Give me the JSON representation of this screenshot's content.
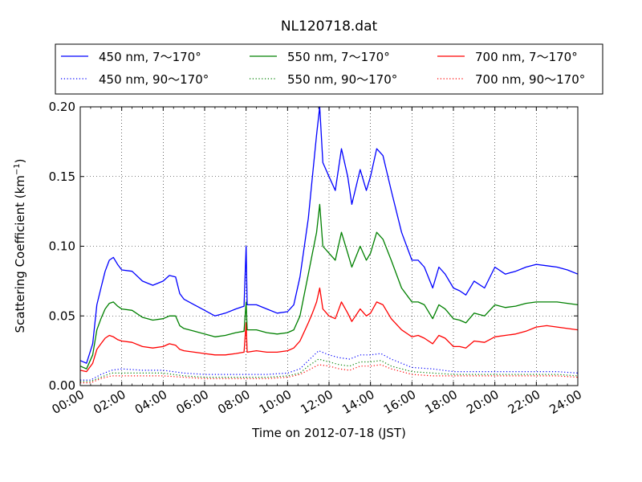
{
  "chart_data": {
    "type": "line",
    "title": "NL120718.dat",
    "xlabel": "Time on 2012-07-18 (JST)",
    "ylabel": "Scattering Coefficient (km",
    "ylabel_sup": "−1",
    "ylabel_close": ")",
    "xlim": [
      0,
      24
    ],
    "ylim": [
      0.0,
      0.2
    ],
    "x_ticks": [
      0,
      2,
      4,
      6,
      8,
      10,
      12,
      14,
      16,
      18,
      20,
      22,
      24
    ],
    "x_tick_labels": [
      "00:00",
      "02:00",
      "04:00",
      "06:00",
      "08:00",
      "10:00",
      "12:00",
      "14:00",
      "16:00",
      "18:00",
      "20:00",
      "22:00",
      "24:00"
    ],
    "y_ticks": [
      0.0,
      0.05,
      0.1,
      0.15,
      0.2
    ],
    "y_tick_labels": [
      "0.00",
      "0.05",
      "0.10",
      "0.15",
      "0.20"
    ],
    "grid": true,
    "legend_position": "top, above plot",
    "series": [
      {
        "name": "450 nm, 7～170°",
        "color": "#0000ff",
        "style": "solid",
        "points": [
          [
            0,
            0.018
          ],
          [
            0.3,
            0.016
          ],
          [
            0.6,
            0.03
          ],
          [
            0.8,
            0.058
          ],
          [
            1.0,
            0.07
          ],
          [
            1.2,
            0.082
          ],
          [
            1.4,
            0.09
          ],
          [
            1.6,
            0.092
          ],
          [
            1.8,
            0.087
          ],
          [
            2,
            0.083
          ],
          [
            2.5,
            0.082
          ],
          [
            3,
            0.075
          ],
          [
            3.5,
            0.072
          ],
          [
            4,
            0.075
          ],
          [
            4.3,
            0.079
          ],
          [
            4.6,
            0.078
          ],
          [
            4.8,
            0.066
          ],
          [
            5,
            0.062
          ],
          [
            5.5,
            0.058
          ],
          [
            6,
            0.054
          ],
          [
            6.5,
            0.05
          ],
          [
            7,
            0.052
          ],
          [
            7.5,
            0.055
          ],
          [
            7.9,
            0.057
          ],
          [
            8.0,
            0.1
          ],
          [
            8.05,
            0.058
          ],
          [
            8.5,
            0.058
          ],
          [
            9,
            0.055
          ],
          [
            9.5,
            0.052
          ],
          [
            10,
            0.053
          ],
          [
            10.3,
            0.058
          ],
          [
            10.6,
            0.078
          ],
          [
            11,
            0.12
          ],
          [
            11.2,
            0.15
          ],
          [
            11.4,
            0.18
          ],
          [
            11.55,
            0.2
          ],
          [
            11.7,
            0.16
          ],
          [
            12,
            0.15
          ],
          [
            12.3,
            0.14
          ],
          [
            12.6,
            0.17
          ],
          [
            12.9,
            0.15
          ],
          [
            13.1,
            0.13
          ],
          [
            13.5,
            0.155
          ],
          [
            13.8,
            0.14
          ],
          [
            14,
            0.15
          ],
          [
            14.3,
            0.17
          ],
          [
            14.6,
            0.165
          ],
          [
            15,
            0.14
          ],
          [
            15.5,
            0.11
          ],
          [
            16,
            0.09
          ],
          [
            16.3,
            0.09
          ],
          [
            16.6,
            0.085
          ],
          [
            17,
            0.07
          ],
          [
            17.3,
            0.085
          ],
          [
            17.6,
            0.08
          ],
          [
            18,
            0.07
          ],
          [
            18.3,
            0.068
          ],
          [
            18.6,
            0.065
          ],
          [
            19,
            0.075
          ],
          [
            19.5,
            0.07
          ],
          [
            20,
            0.085
          ],
          [
            20.5,
            0.08
          ],
          [
            21,
            0.082
          ],
          [
            21.5,
            0.085
          ],
          [
            22,
            0.087
          ],
          [
            22.5,
            0.086
          ],
          [
            23,
            0.085
          ],
          [
            23.5,
            0.083
          ],
          [
            24,
            0.08
          ]
        ]
      },
      {
        "name": "550 nm, 7～170°",
        "color": "#008000",
        "style": "solid",
        "points": [
          [
            0,
            0.014
          ],
          [
            0.3,
            0.012
          ],
          [
            0.6,
            0.022
          ],
          [
            0.8,
            0.04
          ],
          [
            1.0,
            0.048
          ],
          [
            1.2,
            0.055
          ],
          [
            1.4,
            0.059
          ],
          [
            1.6,
            0.06
          ],
          [
            1.8,
            0.057
          ],
          [
            2,
            0.055
          ],
          [
            2.5,
            0.054
          ],
          [
            3,
            0.049
          ],
          [
            3.5,
            0.047
          ],
          [
            4,
            0.048
          ],
          [
            4.3,
            0.05
          ],
          [
            4.6,
            0.05
          ],
          [
            4.8,
            0.043
          ],
          [
            5,
            0.041
          ],
          [
            5.5,
            0.039
          ],
          [
            6,
            0.037
          ],
          [
            6.5,
            0.035
          ],
          [
            7,
            0.036
          ],
          [
            7.5,
            0.038
          ],
          [
            7.9,
            0.039
          ],
          [
            8.0,
            0.06
          ],
          [
            8.05,
            0.04
          ],
          [
            8.5,
            0.04
          ],
          [
            9,
            0.038
          ],
          [
            9.5,
            0.037
          ],
          [
            10,
            0.038
          ],
          [
            10.3,
            0.04
          ],
          [
            10.6,
            0.05
          ],
          [
            11,
            0.08
          ],
          [
            11.2,
            0.095
          ],
          [
            11.4,
            0.11
          ],
          [
            11.55,
            0.13
          ],
          [
            11.7,
            0.1
          ],
          [
            12,
            0.095
          ],
          [
            12.3,
            0.09
          ],
          [
            12.6,
            0.11
          ],
          [
            12.9,
            0.095
          ],
          [
            13.1,
            0.085
          ],
          [
            13.5,
            0.1
          ],
          [
            13.8,
            0.09
          ],
          [
            14,
            0.095
          ],
          [
            14.3,
            0.11
          ],
          [
            14.6,
            0.105
          ],
          [
            15,
            0.09
          ],
          [
            15.5,
            0.07
          ],
          [
            16,
            0.06
          ],
          [
            16.3,
            0.06
          ],
          [
            16.6,
            0.058
          ],
          [
            17,
            0.048
          ],
          [
            17.3,
            0.058
          ],
          [
            17.6,
            0.055
          ],
          [
            18,
            0.048
          ],
          [
            18.3,
            0.047
          ],
          [
            18.6,
            0.045
          ],
          [
            19,
            0.052
          ],
          [
            19.5,
            0.05
          ],
          [
            20,
            0.058
          ],
          [
            20.5,
            0.056
          ],
          [
            21,
            0.057
          ],
          [
            21.5,
            0.059
          ],
          [
            22,
            0.06
          ],
          [
            22.5,
            0.06
          ],
          [
            23,
            0.06
          ],
          [
            23.5,
            0.059
          ],
          [
            24,
            0.058
          ]
        ]
      },
      {
        "name": "700 nm, 7～170°",
        "color": "#ff0000",
        "style": "solid",
        "points": [
          [
            0,
            0.011
          ],
          [
            0.3,
            0.01
          ],
          [
            0.6,
            0.016
          ],
          [
            0.8,
            0.026
          ],
          [
            1.0,
            0.03
          ],
          [
            1.2,
            0.034
          ],
          [
            1.4,
            0.036
          ],
          [
            1.6,
            0.035
          ],
          [
            1.8,
            0.033
          ],
          [
            2,
            0.032
          ],
          [
            2.5,
            0.031
          ],
          [
            3,
            0.028
          ],
          [
            3.5,
            0.027
          ],
          [
            4,
            0.028
          ],
          [
            4.3,
            0.03
          ],
          [
            4.6,
            0.029
          ],
          [
            4.8,
            0.026
          ],
          [
            5,
            0.025
          ],
          [
            5.5,
            0.024
          ],
          [
            6,
            0.023
          ],
          [
            6.5,
            0.022
          ],
          [
            7,
            0.022
          ],
          [
            7.5,
            0.023
          ],
          [
            7.9,
            0.024
          ],
          [
            8.0,
            0.045
          ],
          [
            8.05,
            0.024
          ],
          [
            8.5,
            0.025
          ],
          [
            9,
            0.024
          ],
          [
            9.5,
            0.024
          ],
          [
            10,
            0.025
          ],
          [
            10.3,
            0.027
          ],
          [
            10.6,
            0.032
          ],
          [
            11,
            0.045
          ],
          [
            11.2,
            0.052
          ],
          [
            11.4,
            0.06
          ],
          [
            11.55,
            0.07
          ],
          [
            11.7,
            0.055
          ],
          [
            12,
            0.05
          ],
          [
            12.3,
            0.048
          ],
          [
            12.6,
            0.06
          ],
          [
            12.9,
            0.052
          ],
          [
            13.1,
            0.046
          ],
          [
            13.5,
            0.055
          ],
          [
            13.8,
            0.05
          ],
          [
            14,
            0.052
          ],
          [
            14.3,
            0.06
          ],
          [
            14.6,
            0.058
          ],
          [
            15,
            0.048
          ],
          [
            15.5,
            0.04
          ],
          [
            16,
            0.035
          ],
          [
            16.3,
            0.036
          ],
          [
            16.6,
            0.034
          ],
          [
            17,
            0.03
          ],
          [
            17.3,
            0.036
          ],
          [
            17.6,
            0.034
          ],
          [
            18,
            0.028
          ],
          [
            18.3,
            0.028
          ],
          [
            18.6,
            0.027
          ],
          [
            19,
            0.032
          ],
          [
            19.5,
            0.031
          ],
          [
            20,
            0.035
          ],
          [
            20.5,
            0.036
          ],
          [
            21,
            0.037
          ],
          [
            21.5,
            0.039
          ],
          [
            22,
            0.042
          ],
          [
            22.5,
            0.043
          ],
          [
            23,
            0.042
          ],
          [
            23.5,
            0.041
          ],
          [
            24,
            0.04
          ]
        ]
      },
      {
        "name": "450 nm, 90～170°",
        "color": "#0000ff",
        "style": "dotted",
        "points": [
          [
            0,
            0.004
          ],
          [
            0.5,
            0.004
          ],
          [
            1,
            0.008
          ],
          [
            1.5,
            0.011
          ],
          [
            2,
            0.012
          ],
          [
            3,
            0.011
          ],
          [
            4,
            0.011
          ],
          [
            5,
            0.009
          ],
          [
            6,
            0.008
          ],
          [
            7,
            0.008
          ],
          [
            8,
            0.008
          ],
          [
            9,
            0.008
          ],
          [
            10,
            0.009
          ],
          [
            10.6,
            0.012
          ],
          [
            11,
            0.018
          ],
          [
            11.5,
            0.025
          ],
          [
            12,
            0.022
          ],
          [
            12.5,
            0.02
          ],
          [
            13,
            0.019
          ],
          [
            13.5,
            0.022
          ],
          [
            14,
            0.022
          ],
          [
            14.5,
            0.023
          ],
          [
            15,
            0.019
          ],
          [
            16,
            0.013
          ],
          [
            17,
            0.012
          ],
          [
            18,
            0.01
          ],
          [
            19,
            0.01
          ],
          [
            20,
            0.01
          ],
          [
            21,
            0.01
          ],
          [
            22,
            0.01
          ],
          [
            23,
            0.01
          ],
          [
            24,
            0.009
          ]
        ]
      },
      {
        "name": "550 nm, 90～170°",
        "color": "#008000",
        "style": "dotted",
        "points": [
          [
            0,
            0.003
          ],
          [
            0.5,
            0.003
          ],
          [
            1,
            0.006
          ],
          [
            1.5,
            0.009
          ],
          [
            2,
            0.009
          ],
          [
            3,
            0.009
          ],
          [
            4,
            0.009
          ],
          [
            5,
            0.007
          ],
          [
            6,
            0.006
          ],
          [
            7,
            0.006
          ],
          [
            8,
            0.006
          ],
          [
            9,
            0.006
          ],
          [
            10,
            0.007
          ],
          [
            10.6,
            0.009
          ],
          [
            11,
            0.014
          ],
          [
            11.5,
            0.019
          ],
          [
            12,
            0.017
          ],
          [
            12.5,
            0.015
          ],
          [
            13,
            0.014
          ],
          [
            13.5,
            0.017
          ],
          [
            14,
            0.017
          ],
          [
            14.5,
            0.018
          ],
          [
            15,
            0.014
          ],
          [
            16,
            0.01
          ],
          [
            17,
            0.009
          ],
          [
            18,
            0.008
          ],
          [
            19,
            0.008
          ],
          [
            20,
            0.008
          ],
          [
            21,
            0.008
          ],
          [
            22,
            0.008
          ],
          [
            23,
            0.008
          ],
          [
            24,
            0.007
          ]
        ]
      },
      {
        "name": "700 nm, 90～170°",
        "color": "#ff0000",
        "style": "dotted",
        "points": [
          [
            0,
            0.002
          ],
          [
            0.5,
            0.002
          ],
          [
            1,
            0.005
          ],
          [
            1.5,
            0.007
          ],
          [
            2,
            0.007
          ],
          [
            3,
            0.007
          ],
          [
            4,
            0.007
          ],
          [
            5,
            0.006
          ],
          [
            6,
            0.005
          ],
          [
            7,
            0.005
          ],
          [
            8,
            0.005
          ],
          [
            9,
            0.005
          ],
          [
            10,
            0.006
          ],
          [
            10.6,
            0.008
          ],
          [
            11,
            0.011
          ],
          [
            11.5,
            0.015
          ],
          [
            12,
            0.014
          ],
          [
            12.5,
            0.012
          ],
          [
            13,
            0.011
          ],
          [
            13.5,
            0.014
          ],
          [
            14,
            0.014
          ],
          [
            14.5,
            0.015
          ],
          [
            15,
            0.012
          ],
          [
            16,
            0.008
          ],
          [
            17,
            0.007
          ],
          [
            18,
            0.007
          ],
          [
            19,
            0.007
          ],
          [
            20,
            0.007
          ],
          [
            21,
            0.007
          ],
          [
            22,
            0.007
          ],
          [
            23,
            0.007
          ],
          [
            24,
            0.006
          ]
        ]
      }
    ]
  }
}
